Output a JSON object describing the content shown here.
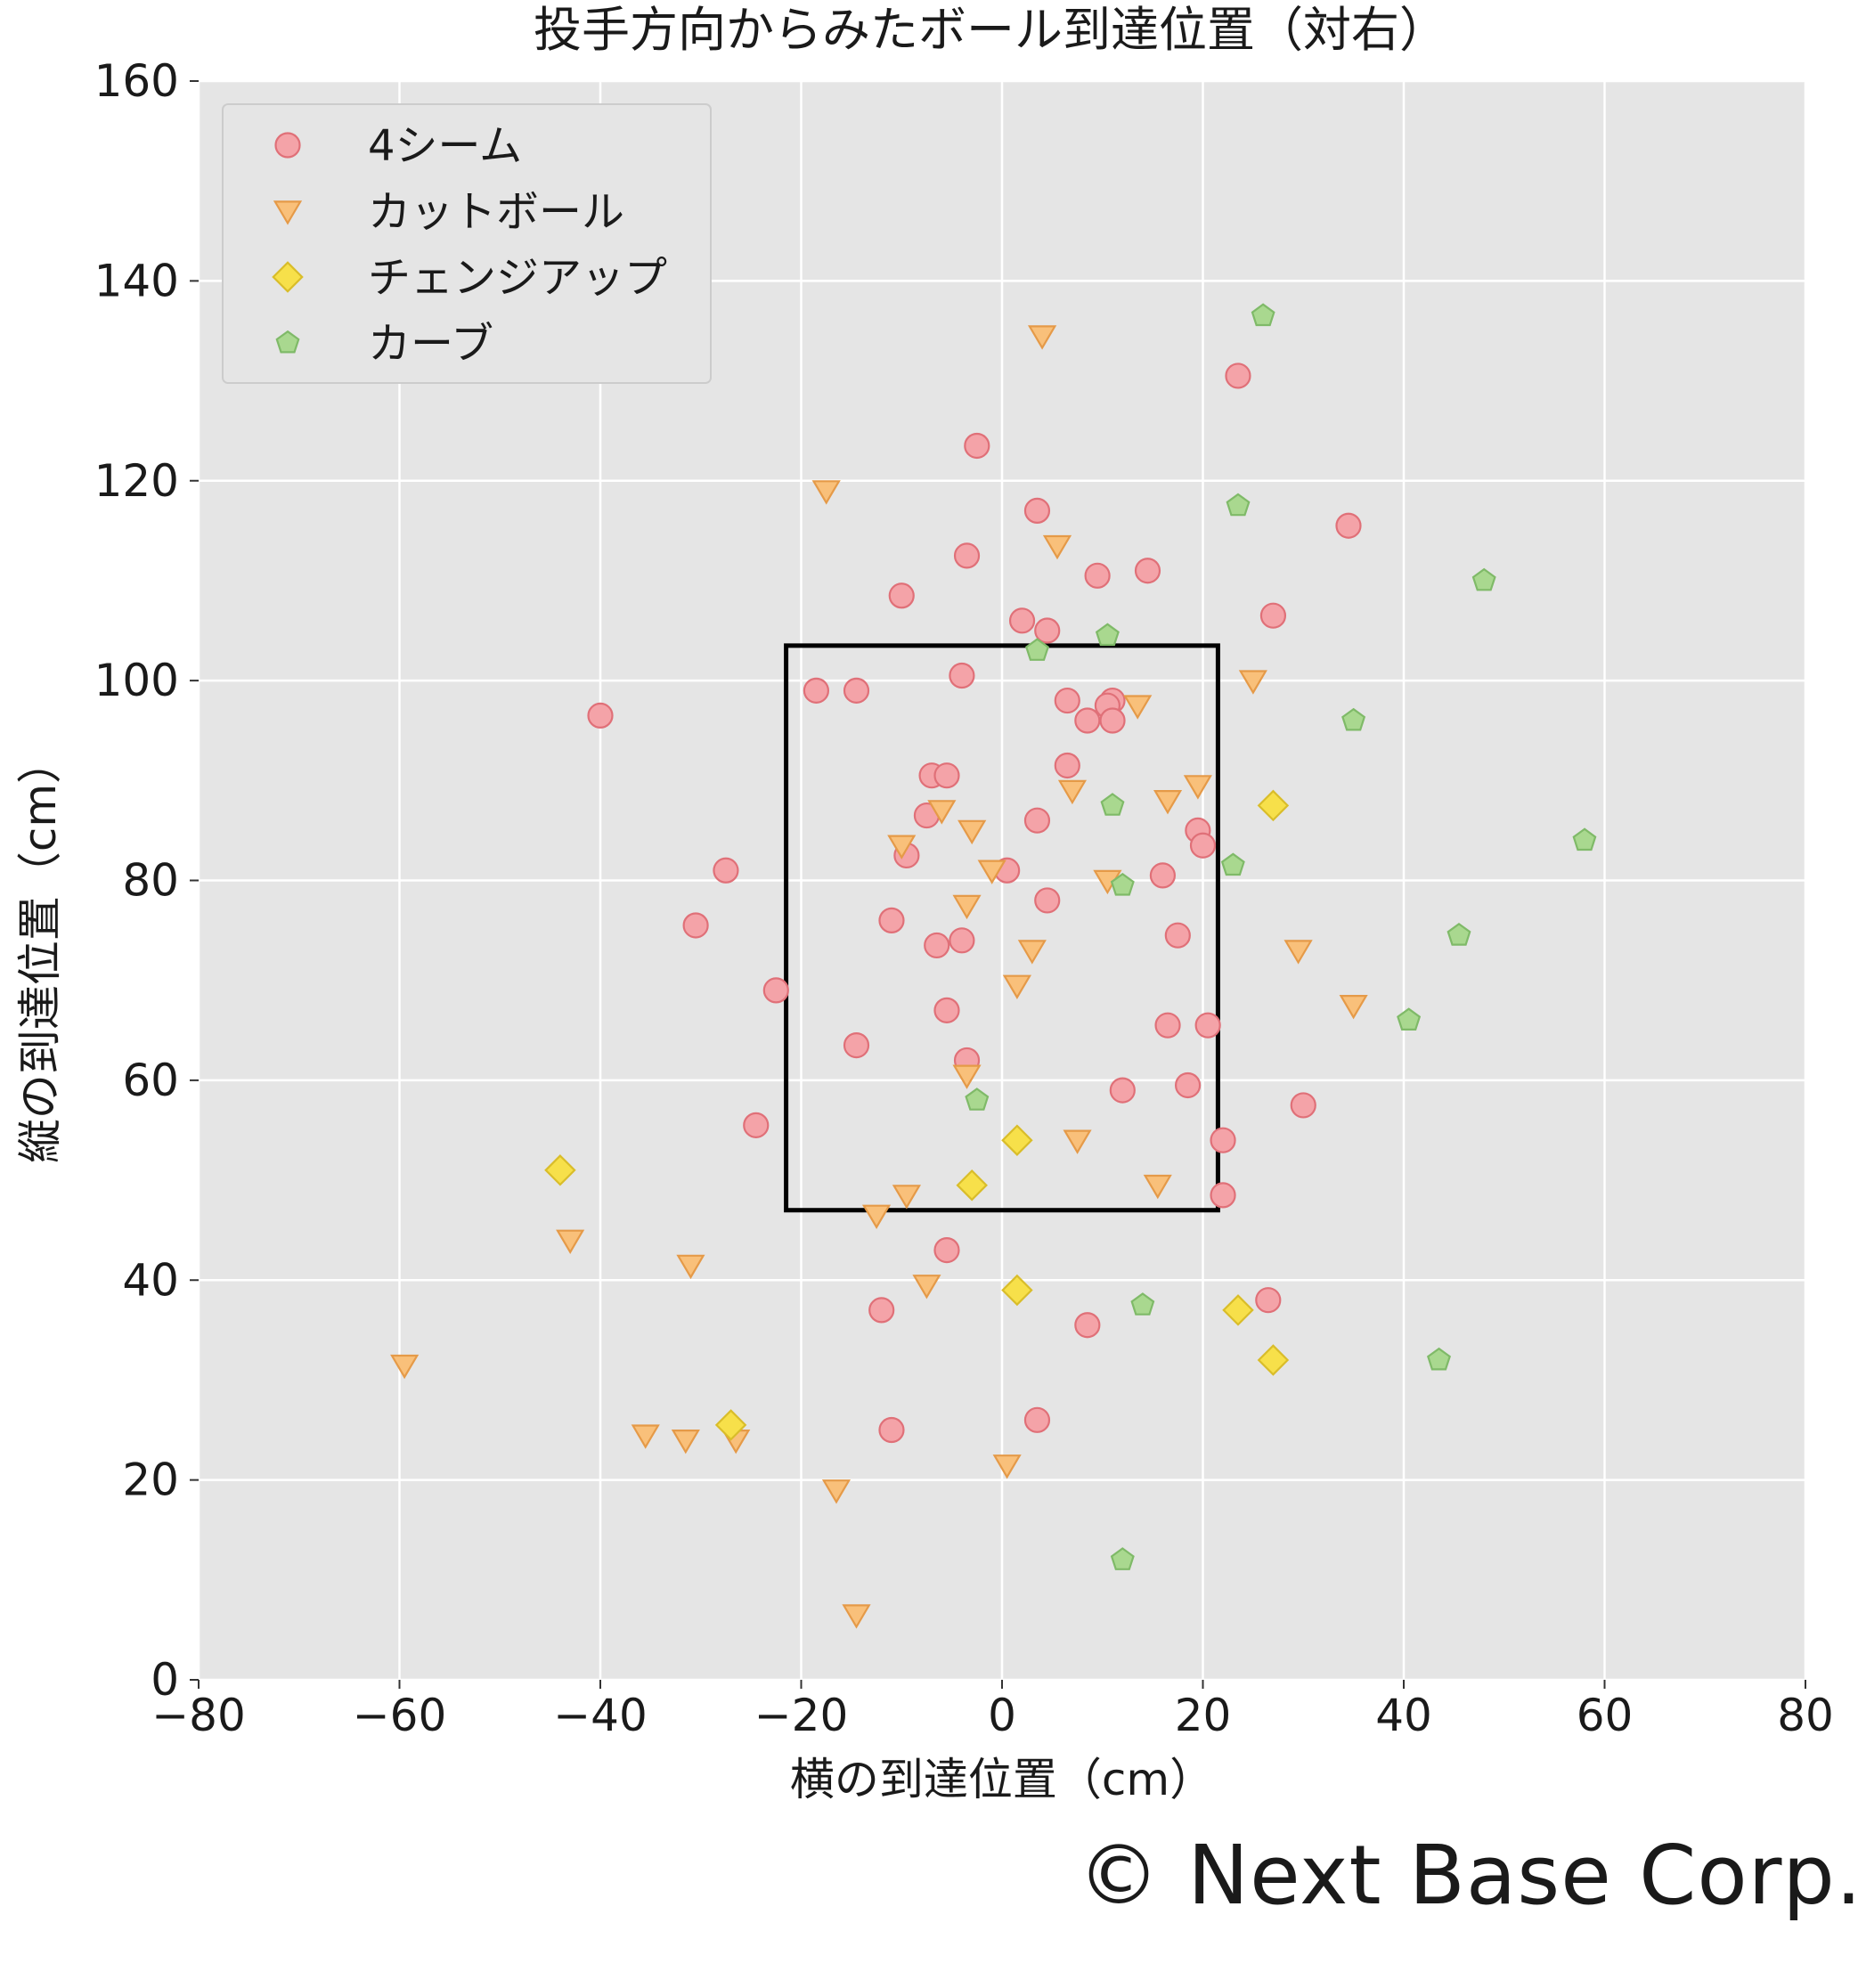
{
  "chart_data": {
    "type": "scatter",
    "title": "投手方向からみたボール到達位置（対右）",
    "xlabel": "横の到達位置（cm）",
    "ylabel": "縦の到達位置（cm）",
    "xlim": [
      -80,
      80
    ],
    "ylim": [
      0,
      160
    ],
    "xticks": [
      -80,
      -60,
      -40,
      -20,
      0,
      20,
      40,
      60,
      80
    ],
    "yticks": [
      0,
      20,
      40,
      60,
      80,
      100,
      120,
      140,
      160
    ],
    "xtick_labels": [
      "−80",
      "−60",
      "−40",
      "−20",
      "0",
      "20",
      "40",
      "60",
      "80"
    ],
    "ytick_labels": [
      "0",
      "20",
      "40",
      "60",
      "80",
      "100",
      "120",
      "140",
      "160"
    ],
    "grid": true,
    "legend_position": "top-left",
    "strike_zone": {
      "x": [
        -21.5,
        21.5
      ],
      "y": [
        47,
        103.5
      ]
    },
    "series": [
      {
        "name": "4シーム",
        "marker": "circle",
        "color": "#f4a3a8",
        "edge": "#e07078",
        "points": [
          [
            23.5,
            130.5
          ],
          [
            -2.5,
            123.5
          ],
          [
            3.5,
            117
          ],
          [
            34.5,
            115.5
          ],
          [
            -3.5,
            112.5
          ],
          [
            14.5,
            111
          ],
          [
            9.5,
            110.5
          ],
          [
            -10,
            108.5
          ],
          [
            27,
            106.5
          ],
          [
            2,
            106
          ],
          [
            4.5,
            105
          ],
          [
            -4,
            100.5
          ],
          [
            -18.5,
            99
          ],
          [
            -14.5,
            99
          ],
          [
            -40,
            96.5
          ],
          [
            6.5,
            98
          ],
          [
            11,
            98
          ],
          [
            10.5,
            97.5
          ],
          [
            8.5,
            96
          ],
          [
            11,
            96
          ],
          [
            6.5,
            91.5
          ],
          [
            -7,
            90.5
          ],
          [
            -5.5,
            90.5
          ],
          [
            -7.5,
            86.5
          ],
          [
            3.5,
            86
          ],
          [
            19.5,
            85
          ],
          [
            20,
            83.5
          ],
          [
            -9.5,
            82.5
          ],
          [
            -27.5,
            81
          ],
          [
            0.5,
            81
          ],
          [
            16,
            80.5
          ],
          [
            4.5,
            78
          ],
          [
            -11,
            76
          ],
          [
            -30.5,
            75.5
          ],
          [
            17.5,
            74.5
          ],
          [
            -4,
            74
          ],
          [
            -6.5,
            73.5
          ],
          [
            -22.5,
            69
          ],
          [
            -5.5,
            67
          ],
          [
            16.5,
            65.5
          ],
          [
            20.5,
            65.5
          ],
          [
            -14.5,
            63.5
          ],
          [
            -3.5,
            62
          ],
          [
            12,
            59
          ],
          [
            18.5,
            59.5
          ],
          [
            30,
            57.5
          ],
          [
            -24.5,
            55.5
          ],
          [
            22,
            54
          ],
          [
            22,
            48.5
          ],
          [
            -5.5,
            43
          ],
          [
            -12,
            37
          ],
          [
            8.5,
            35.5
          ],
          [
            26.5,
            38
          ],
          [
            -11,
            25
          ],
          [
            3.5,
            26
          ]
        ]
      },
      {
        "name": "カットボール",
        "marker": "triangle-down",
        "color": "#f9c07a",
        "edge": "#e59a48",
        "points": [
          [
            4,
            134.5
          ],
          [
            -17.5,
            119
          ],
          [
            5.5,
            113.5
          ],
          [
            25,
            100
          ],
          [
            13.5,
            97.5
          ],
          [
            19.5,
            89.5
          ],
          [
            7,
            89
          ],
          [
            16.5,
            88
          ],
          [
            -6,
            87
          ],
          [
            -3,
            85
          ],
          [
            -10,
            83.5
          ],
          [
            -1,
            81
          ],
          [
            10.5,
            80
          ],
          [
            -3.5,
            77.5
          ],
          [
            3,
            73
          ],
          [
            29.5,
            73
          ],
          [
            1.5,
            69.5
          ],
          [
            35,
            67.5
          ],
          [
            -3.5,
            60.5
          ],
          [
            7.5,
            54
          ],
          [
            15.5,
            49.5
          ],
          [
            -9.5,
            48.5
          ],
          [
            -12.5,
            46.5
          ],
          [
            -43,
            44
          ],
          [
            -31,
            41.5
          ],
          [
            -7.5,
            39.5
          ],
          [
            -59.5,
            31.5
          ],
          [
            -35.5,
            24.5
          ],
          [
            -31.5,
            24
          ],
          [
            -26.5,
            24
          ],
          [
            0.5,
            21.5
          ],
          [
            -16.5,
            19
          ],
          [
            -14.5,
            6.5
          ]
        ]
      },
      {
        "name": "チェンジアップ",
        "marker": "diamond",
        "color": "#f7e04a",
        "edge": "#d9bd2a",
        "points": [
          [
            27,
            87.5
          ],
          [
            1.5,
            54
          ],
          [
            -44,
            51
          ],
          [
            -3,
            49.5
          ],
          [
            1.5,
            39
          ],
          [
            23.5,
            37
          ],
          [
            27,
            32
          ],
          [
            -27,
            25.5
          ]
        ]
      },
      {
        "name": "カーブ",
        "marker": "pentagon",
        "color": "#a9d88f",
        "edge": "#7fba68",
        "points": [
          [
            26,
            136.5
          ],
          [
            23.5,
            117.5
          ],
          [
            48,
            110
          ],
          [
            10.5,
            104.5
          ],
          [
            3.5,
            103
          ],
          [
            35,
            96
          ],
          [
            11,
            87.5
          ],
          [
            58,
            84
          ],
          [
            23,
            81.5
          ],
          [
            12,
            79.5
          ],
          [
            45.5,
            74.5
          ],
          [
            40.5,
            66
          ],
          [
            -2.5,
            58
          ],
          [
            14,
            37.5
          ],
          [
            43.5,
            32
          ],
          [
            12,
            12
          ]
        ]
      }
    ]
  },
  "copyright": "© Next Base Corp."
}
